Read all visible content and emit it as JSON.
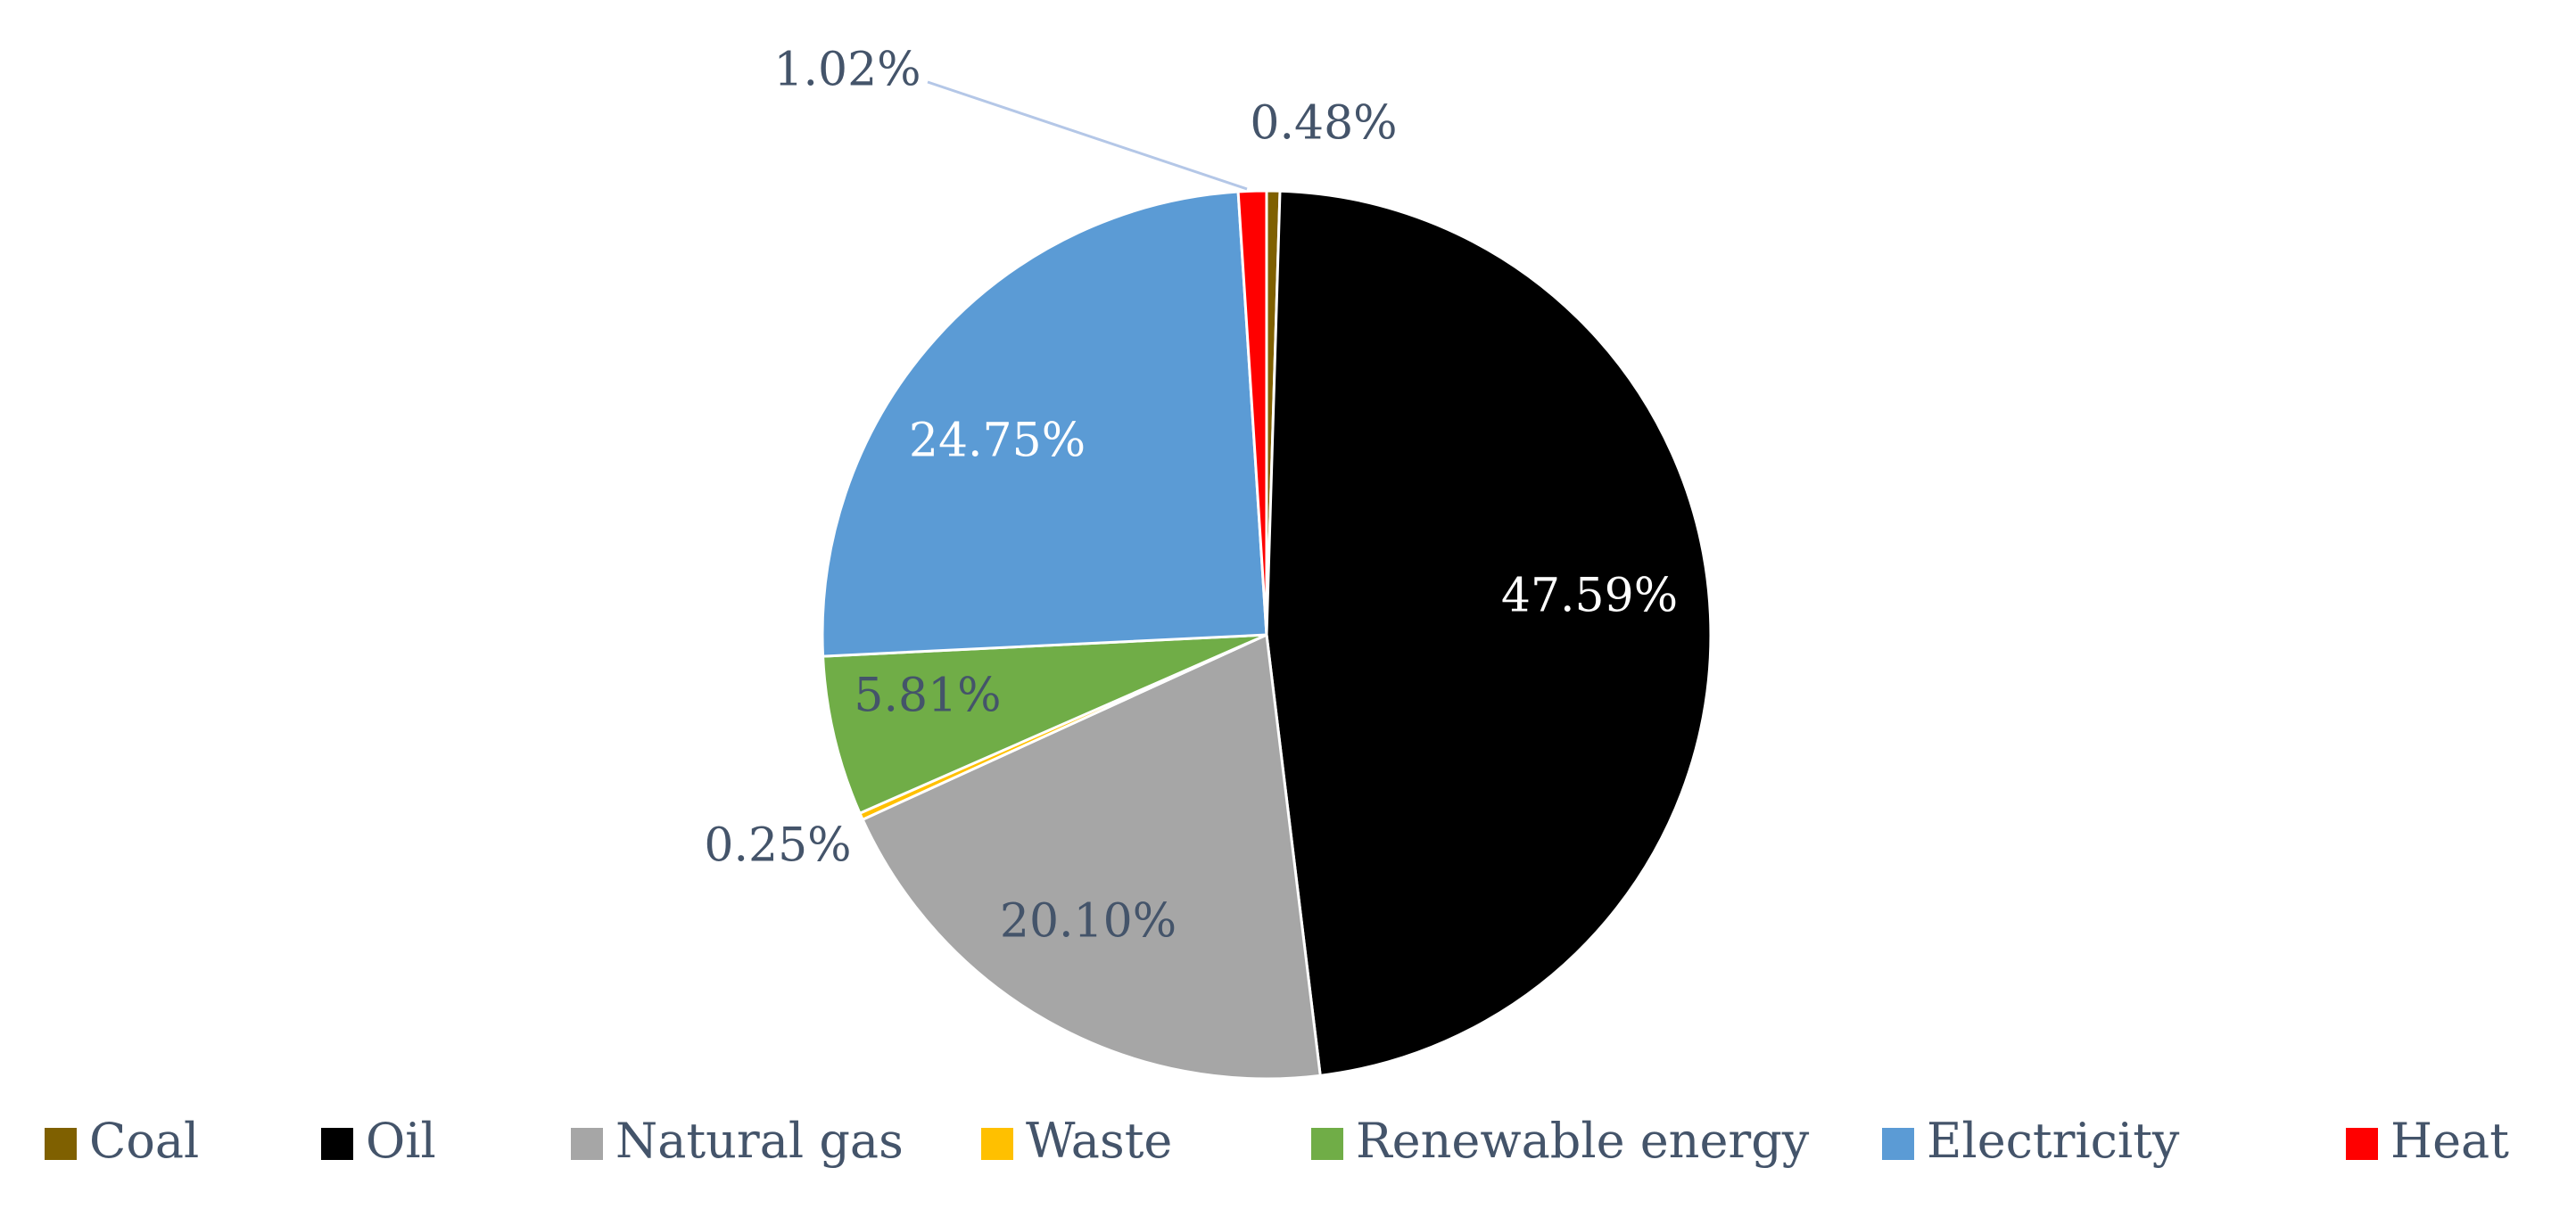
{
  "chart_data": {
    "type": "pie",
    "title": "",
    "categories": [
      "Coal",
      "Oil",
      "Natural gas",
      "Waste",
      "Renewable energy",
      "Electricity",
      "Heat"
    ],
    "values": [
      0.48,
      47.59,
      20.1,
      0.25,
      5.81,
      24.75,
      1.02
    ],
    "data_labels": [
      "0.48%",
      "47.59%",
      "20.10%",
      "0.25%",
      "5.81%",
      "24.75%",
      "1.02%"
    ],
    "colors": [
      "#7f6000",
      "#000000",
      "#a6a6a6",
      "#ffc000",
      "#70ad47",
      "#5b9bd5",
      "#ff0000"
    ],
    "label_colors": [
      "#44546a",
      "#ffffff",
      "#44546a",
      "#44546a",
      "#44546a",
      "#ffffff",
      "#44546a"
    ],
    "start_angle_deg": 0,
    "direction": "clockwise",
    "legend_position": "bottom"
  }
}
